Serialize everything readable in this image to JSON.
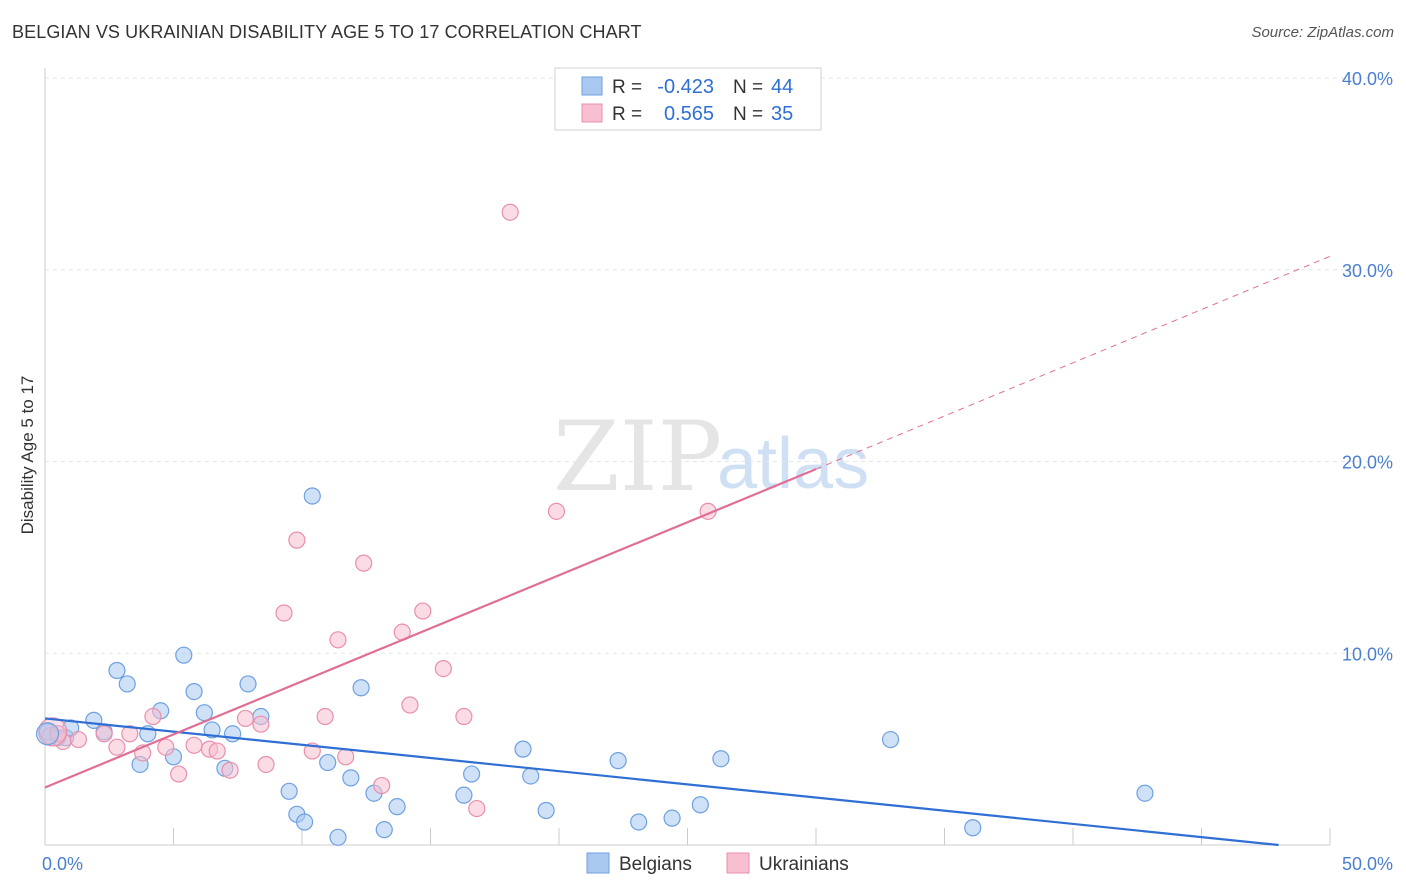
{
  "title": "BELGIAN VS UKRAINIAN DISABILITY AGE 5 TO 17 CORRELATION CHART",
  "source": "Source: ZipAtlas.com",
  "watermark": {
    "zip": "ZIP",
    "atlas": "atlas"
  },
  "legend_stats": [
    {
      "r_label": "R =",
      "r_value": "-0.423",
      "n_label": "N =",
      "n_value": "44",
      "color": "#a8c8f0",
      "edge": "#6fa0e0"
    },
    {
      "r_label": "R =",
      "r_value": "0.565",
      "n_label": "N =",
      "n_value": "35",
      "color": "#f7bfd0",
      "edge": "#e890ab"
    }
  ],
  "bottom_legend": [
    {
      "label": "Belgians",
      "color": "#a8c8f0",
      "edge": "#6fa0e0"
    },
    {
      "label": "Ukrainians",
      "color": "#f7bfd0",
      "edge": "#e890ab"
    }
  ],
  "chart_data": {
    "type": "scatter",
    "title": "BELGIAN VS UKRAINIAN DISABILITY AGE 5 TO 17 CORRELATION CHART",
    "xlabel": "",
    "ylabel": "Disability Age 5 to 17",
    "xlim": [
      0,
      50
    ],
    "ylim": [
      0,
      40
    ],
    "x_tick_labels": [
      "0.0%",
      "50.0%"
    ],
    "y_tick_labels": [
      "10.0%",
      "20.0%",
      "30.0%",
      "40.0%"
    ],
    "y_ticks": [
      10,
      20,
      30,
      40
    ],
    "grid": true,
    "series": [
      {
        "name": "Belgians",
        "color": "#6fa0e0",
        "fill": "#a8c8f0",
        "line_color": "#2f6fd4",
        "points": [
          [
            0.1,
            5.9
          ],
          [
            0.5,
            5.6
          ],
          [
            0.8,
            5.6
          ],
          [
            1.0,
            6.1
          ],
          [
            1.9,
            6.5
          ],
          [
            2.3,
            5.9
          ],
          [
            2.8,
            9.1
          ],
          [
            3.2,
            8.4
          ],
          [
            3.7,
            4.2
          ],
          [
            4.0,
            5.8
          ],
          [
            4.5,
            7.0
          ],
          [
            5.0,
            4.6
          ],
          [
            5.4,
            9.9
          ],
          [
            5.8,
            8.0
          ],
          [
            6.2,
            6.9
          ],
          [
            6.5,
            6.0
          ],
          [
            7.0,
            4.0
          ],
          [
            7.3,
            5.8
          ],
          [
            7.9,
            8.4
          ],
          [
            8.4,
            6.7
          ],
          [
            9.5,
            2.8
          ],
          [
            9.8,
            1.6
          ],
          [
            10.1,
            1.2
          ],
          [
            10.4,
            18.2
          ],
          [
            11.0,
            4.3
          ],
          [
            11.4,
            0.4
          ],
          [
            11.9,
            3.5
          ],
          [
            12.3,
            8.2
          ],
          [
            12.8,
            2.7
          ],
          [
            13.2,
            0.8
          ],
          [
            13.7,
            2.0
          ],
          [
            16.3,
            2.6
          ],
          [
            16.6,
            3.7
          ],
          [
            18.6,
            5.0
          ],
          [
            18.9,
            3.6
          ],
          [
            19.5,
            1.8
          ],
          [
            22.3,
            4.4
          ],
          [
            23.1,
            1.2
          ],
          [
            24.4,
            1.4
          ],
          [
            25.5,
            2.1
          ],
          [
            26.3,
            4.5
          ],
          [
            32.9,
            5.5
          ],
          [
            36.1,
            0.9
          ],
          [
            42.8,
            2.7
          ]
        ],
        "trend": {
          "x": [
            0,
            48.0
          ],
          "y": [
            6.6,
            0.0
          ],
          "dashed_to": null
        }
      },
      {
        "name": "Ukrainians",
        "color": "#e890ab",
        "fill": "#f7bfd0",
        "line_color": "#e06e95",
        "points": [
          [
            0.2,
            5.7
          ],
          [
            0.7,
            5.4
          ],
          [
            1.3,
            5.5
          ],
          [
            2.3,
            5.8
          ],
          [
            2.8,
            5.1
          ],
          [
            3.3,
            5.8
          ],
          [
            3.8,
            4.8
          ],
          [
            4.2,
            6.7
          ],
          [
            4.7,
            5.1
          ],
          [
            5.2,
            3.7
          ],
          [
            5.8,
            5.2
          ],
          [
            6.4,
            5.0
          ],
          [
            6.7,
            4.9
          ],
          [
            7.2,
            3.9
          ],
          [
            7.8,
            6.6
          ],
          [
            8.4,
            6.3
          ],
          [
            8.6,
            4.2
          ],
          [
            9.3,
            12.1
          ],
          [
            9.8,
            15.9
          ],
          [
            10.4,
            4.9
          ],
          [
            10.9,
            6.7
          ],
          [
            11.4,
            10.7
          ],
          [
            11.7,
            4.6
          ],
          [
            12.4,
            14.7
          ],
          [
            13.1,
            3.1
          ],
          [
            13.9,
            11.1
          ],
          [
            14.2,
            7.3
          ],
          [
            14.7,
            12.2
          ],
          [
            15.5,
            9.2
          ],
          [
            16.3,
            6.7
          ],
          [
            16.8,
            1.9
          ],
          [
            18.1,
            33.0
          ],
          [
            19.9,
            17.4
          ],
          [
            25.8,
            17.4
          ],
          [
            0.5,
            5.8
          ]
        ],
        "trend": {
          "x": [
            0,
            30.0
          ],
          "y": [
            3.0,
            19.6
          ],
          "dashed_to": {
            "x": 50.0,
            "y": 30.7
          }
        }
      }
    ]
  }
}
